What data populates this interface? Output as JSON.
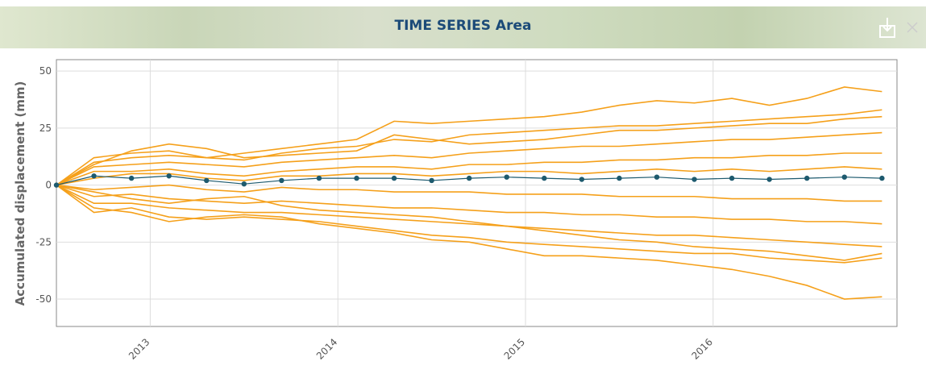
{
  "header": {
    "title": "TIME SERIES Area"
  },
  "chart_data": {
    "type": "line",
    "y_label": "Accumulated displacement (mm)",
    "x": [
      2012.5,
      2012.7,
      2012.9,
      2013.1,
      2013.3,
      2013.5,
      2013.7,
      2013.9,
      2014.1,
      2014.3,
      2014.5,
      2014.7,
      2014.9,
      2015.1,
      2015.3,
      2015.5,
      2015.7,
      2015.9,
      2016.1,
      2016.3,
      2016.5,
      2016.7,
      2016.9
    ],
    "xlim": [
      2012.5,
      2016.98
    ],
    "xticks": [
      2013,
      2014,
      2015,
      2016
    ],
    "ylim": [
      -62,
      55
    ],
    "yticks": [
      -50,
      -25,
      0,
      25,
      50
    ],
    "grid": true,
    "series": [
      {
        "color": "#f5a01a",
        "values": [
          0,
          10,
          12,
          13,
          12,
          14,
          16,
          18,
          20,
          28,
          27,
          28,
          29,
          30,
          32,
          35,
          37,
          36,
          38,
          35,
          38,
          43,
          41
        ]
      },
      {
        "color": "#f5a01a",
        "values": [
          0,
          12,
          14,
          15,
          12,
          11,
          14,
          16,
          17,
          20,
          19,
          22,
          23,
          24,
          25,
          26,
          26,
          27,
          28,
          29,
          30,
          31,
          33
        ]
      },
      {
        "color": "#f5a01a",
        "values": [
          0,
          8,
          9,
          10,
          9,
          8,
          10,
          11,
          12,
          13,
          12,
          14,
          15,
          16,
          17,
          17,
          18,
          19,
          20,
          20,
          21,
          22,
          23
        ]
      },
      {
        "color": "#f5a01a",
        "values": [
          0,
          6,
          6,
          7,
          5,
          4,
          6,
          7,
          8,
          8,
          7,
          9,
          9,
          10,
          10,
          11,
          11,
          12,
          12,
          13,
          13,
          14,
          14
        ]
      },
      {
        "color": "#f5a01a",
        "values": [
          0,
          3,
          5,
          5,
          3,
          2,
          4,
          4,
          5,
          5,
          4,
          5,
          6,
          6,
          5,
          6,
          7,
          6,
          7,
          6,
          7,
          8,
          7
        ]
      },
      {
        "color": "#f5a01a",
        "values": [
          0,
          -2,
          -1,
          0,
          -2,
          -3,
          -1,
          -2,
          -2,
          -3,
          -3,
          -3,
          -4,
          -4,
          -4,
          -5,
          -5,
          -5,
          -6,
          -6,
          -6,
          -7,
          -7
        ]
      },
      {
        "color": "#f5a01a",
        "values": [
          0,
          -5,
          -4,
          -6,
          -7,
          -8,
          -7,
          -8,
          -9,
          -10,
          -10,
          -11,
          -12,
          -12,
          -13,
          -13,
          -14,
          -14,
          -15,
          -15,
          -16,
          -16,
          -17
        ]
      },
      {
        "color": "#f5a01a",
        "values": [
          0,
          -8,
          -8,
          -10,
          -11,
          -12,
          -12,
          -13,
          -14,
          -15,
          -16,
          -17,
          -18,
          -19,
          -20,
          -21,
          -22,
          -22,
          -23,
          -24,
          -25,
          -26,
          -27
        ]
      },
      {
        "color": "#f5a01a",
        "values": [
          0,
          -12,
          -10,
          -14,
          -15,
          -14,
          -15,
          -16,
          -18,
          -20,
          -22,
          -23,
          -25,
          -26,
          -27,
          -28,
          -29,
          -30,
          -30,
          -32,
          -33,
          -34,
          -32
        ]
      },
      {
        "color": "#f5a01a",
        "values": [
          0,
          -10,
          -12,
          -16,
          -14,
          -13,
          -14,
          -17,
          -19,
          -21,
          -24,
          -25,
          -28,
          -31,
          -31,
          -32,
          -33,
          -35,
          -37,
          -40,
          -44,
          -50,
          -49
        ]
      },
      {
        "color": "#f5a01a",
        "values": [
          0,
          9,
          15,
          18,
          16,
          12,
          13,
          14,
          15,
          22,
          20,
          18,
          19,
          20,
          22,
          24,
          24,
          25,
          26,
          27,
          27,
          29,
          30
        ]
      },
      {
        "color": "#f5a01a",
        "values": [
          0,
          -3,
          -6,
          -8,
          -6,
          -5,
          -9,
          -11,
          -12,
          -13,
          -14,
          -16,
          -18,
          -20,
          -22,
          -24,
          -25,
          -27,
          -28,
          -29,
          -31,
          -33,
          -30
        ]
      },
      {
        "color": "#1d5a6e",
        "markers": true,
        "values": [
          0,
          4,
          3,
          4,
          2,
          0.5,
          2,
          3,
          3,
          3,
          2,
          3,
          3.5,
          3,
          2.5,
          3,
          3.5,
          2.5,
          3,
          2.5,
          3,
          3.5,
          3
        ]
      }
    ]
  }
}
